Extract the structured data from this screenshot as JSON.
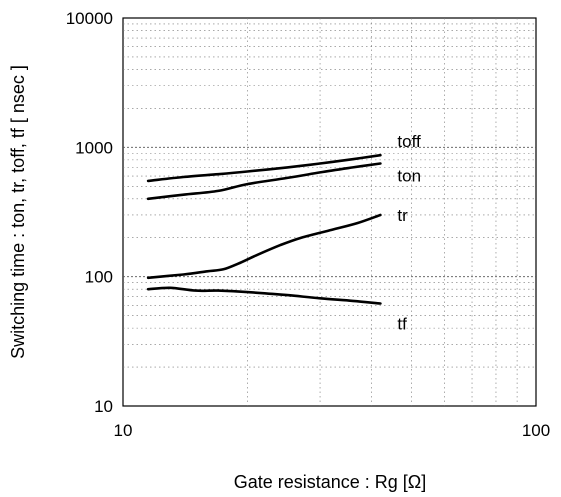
{
  "chart_data": {
    "type": "line",
    "xscale": "log",
    "yscale": "log",
    "xlim": [
      10,
      100
    ],
    "ylim": [
      10,
      10000
    ],
    "xlabel": "Gate resistance : Rg [Ω]",
    "ylabel": "Switching time  :  ton, tr, toff, tf  [ nsec ]",
    "x_ticks": [
      {
        "value": 10,
        "label": "10"
      },
      {
        "value": 100,
        "label": "100"
      }
    ],
    "y_ticks": [
      {
        "value": 10,
        "label": "10"
      },
      {
        "value": 100,
        "label": "100"
      },
      {
        "value": 1000,
        "label": "1000"
      },
      {
        "value": 10000,
        "label": "10000"
      }
    ],
    "grid": true,
    "series": [
      {
        "name": "toff",
        "x": [
          11.5,
          14,
          17,
          20,
          25,
          30,
          36,
          42
        ],
        "y": [
          550,
          590,
          620,
          650,
          700,
          750,
          810,
          870
        ]
      },
      {
        "name": "ton",
        "x": [
          11.5,
          14,
          17,
          20,
          25,
          30,
          36,
          42
        ],
        "y": [
          400,
          430,
          460,
          520,
          580,
          640,
          700,
          750
        ]
      },
      {
        "name": "tr",
        "x": [
          11.5,
          14,
          16,
          17.5,
          19,
          21,
          24,
          27,
          32,
          37,
          42
        ],
        "y": [
          98,
          104,
          110,
          114,
          126,
          146,
          175,
          200,
          230,
          260,
          300
        ]
      },
      {
        "name": "tf",
        "x": [
          11.5,
          13,
          15,
          17,
          20,
          25,
          30,
          36,
          42
        ],
        "y": [
          80,
          82,
          78,
          78,
          76,
          72,
          68,
          65,
          62
        ]
      }
    ]
  }
}
